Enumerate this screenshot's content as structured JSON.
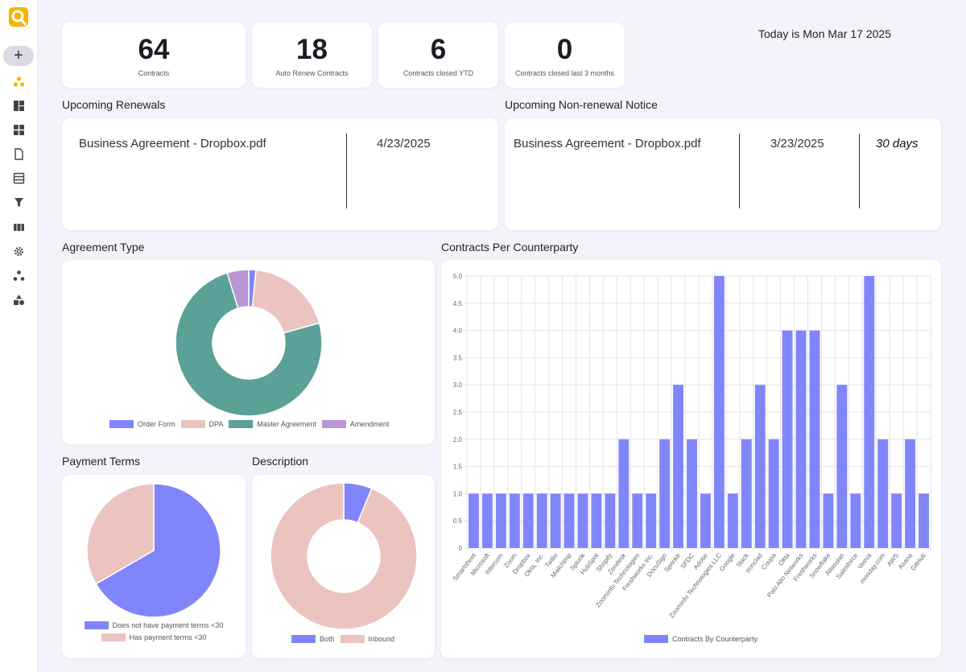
{
  "app": {
    "logo_icon": "q-logo-icon",
    "add_label": "+"
  },
  "sidebar": {
    "items": [
      {
        "name": "dashboard-icon"
      },
      {
        "name": "layout-icon"
      },
      {
        "name": "grid-icon"
      },
      {
        "name": "document-icon"
      },
      {
        "name": "table-icon"
      },
      {
        "name": "filter-icon"
      },
      {
        "name": "workflow-icon"
      },
      {
        "name": "gear-icon"
      },
      {
        "name": "network-icon"
      },
      {
        "name": "shapes-icon"
      }
    ]
  },
  "stats": [
    {
      "value": "64",
      "label": "Contracts"
    },
    {
      "value": "18",
      "label": "Auto Renew Contracts"
    },
    {
      "value": "6",
      "label": "Contracts closed YTD"
    },
    {
      "value": "0",
      "label": "Contracts closed last 3 months"
    }
  ],
  "today": "Today is Mon Mar 17 2025",
  "renewals": {
    "title": "Upcoming Renewals",
    "rows": [
      {
        "file": "Business Agreement - Dropbox.pdf",
        "date": "4/23/2025"
      }
    ]
  },
  "nonrenewal": {
    "title": "Upcoming Non-renewal Notice",
    "rows": [
      {
        "file": "Business Agreement - Dropbox.pdf",
        "date": "3/23/2025",
        "days": "30 days"
      }
    ]
  },
  "sections": {
    "agreement": "Agreement Type",
    "counterparty": "Contracts Per Counterparty",
    "payment": "Payment Terms",
    "description": "Description"
  },
  "colors": {
    "blue": "#8185fb",
    "pink": "#ebc3bf",
    "teal": "#5ba197",
    "purple": "#bb96d4",
    "accent": "#f7b500"
  },
  "chart_data": [
    {
      "type": "pie",
      "title": "Agreement Type",
      "donut": true,
      "labels": [
        "Order Form",
        "DPA",
        "Master Agreement",
        "Amendment"
      ],
      "values": [
        1,
        12,
        47,
        3
      ],
      "colors": [
        "#8185fb",
        "#ebc3bf",
        "#5ba197",
        "#bb96d4"
      ]
    },
    {
      "type": "bar",
      "title": "Contracts Per Counterparty",
      "categories": [
        "Smartsheet",
        "Microsoft",
        "Intercom",
        "Zoom",
        "Dropbox",
        "Okta, Inc.",
        "Twilio",
        "Mailchimp",
        "Splunk",
        "HubSpot",
        "Shopify",
        "Zendesk",
        "ZoomInfo Technologies",
        "Freshworks Inc.",
        "DocuSign",
        "Sprinklr",
        "SFDC",
        "Adobe",
        "ZoomInfo Technologies LLC",
        "Google",
        "Slack",
        "Ironclad",
        "Coupa",
        "Okta",
        "Palo Alto Networks",
        "Freshworks",
        "Snowflake",
        "Atlassian",
        "Salesforce",
        "Veeva",
        "monday.com",
        "AWS",
        "Asana",
        "GitHub"
      ],
      "series": [
        {
          "name": "Contracts By Counterparty",
          "values": [
            1,
            1,
            1,
            1,
            1,
            1,
            1,
            1,
            1,
            1,
            1,
            2,
            1,
            1,
            2,
            3,
            2,
            1,
            5,
            1,
            2,
            3,
            2,
            4,
            4,
            4,
            1,
            3,
            1,
            5,
            2,
            1,
            2,
            1
          ]
        }
      ],
      "ylim": [
        0,
        5
      ],
      "yticks": [
        "0",
        "0.5",
        "1.0",
        "1.5",
        "2.0",
        "2.5",
        "3.0",
        "3.5",
        "4.0",
        "4.5",
        "5.0"
      ],
      "color": "#8185fb"
    },
    {
      "type": "pie",
      "title": "Payment Terms",
      "donut": false,
      "labels": [
        "Does not have payment terms <30",
        "Has payment terms <30"
      ],
      "values": [
        2,
        1
      ],
      "colors": [
        "#8185fb",
        "#ebc3bf"
      ]
    },
    {
      "type": "pie",
      "title": "Description",
      "donut": true,
      "labels": [
        "Both",
        "Inbound"
      ],
      "values": [
        1,
        15
      ],
      "colors": [
        "#8185fb",
        "#ebc3bf"
      ]
    }
  ]
}
